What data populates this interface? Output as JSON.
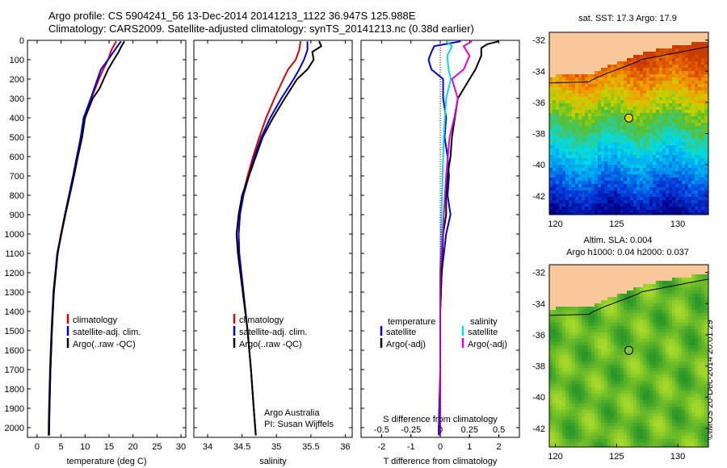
{
  "title": {
    "line1": "Argo profile: CS 5904241_56 13-Dec-2014 20141213_1122 36.947S 125.988E",
    "line2": "Climatology: CARS2009. Satellite-adjusted climatology: synTS_20141213.nc (0.38d earlier)"
  },
  "stamp": "©IMOS 20-Dec-2014 20:01:29",
  "colors": {
    "climatology": "#dd0000",
    "satellite": "#0000dd",
    "argo": "#000000",
    "sat_salinity": "#00dddd",
    "argo_salinity": "#dd00dd",
    "land": "#f8c89a"
  },
  "chart_data": [
    {
      "type": "line",
      "xlabel": "temperature (deg C)",
      "ylabel": "",
      "xlim": [
        -2,
        31
      ],
      "ylim": [
        2050,
        0
      ],
      "xticks": [
        "0",
        "5",
        "10",
        "15",
        "20",
        "25",
        "30"
      ],
      "yticks": [
        "0",
        "100",
        "200",
        "300",
        "400",
        "500",
        "600",
        "700",
        "800",
        "900",
        "1000",
        "1100",
        "1200",
        "1300",
        "1400",
        "1500",
        "1600",
        "1700",
        "1800",
        "1900",
        "2000"
      ],
      "legend": [
        "climatology",
        "satellite-adj. clim.",
        "Argo(..raw -QC)"
      ],
      "series": [
        {
          "name": "climatology",
          "color": "#dd0000",
          "depth": [
            5,
            50,
            100,
            150,
            200,
            300,
            400,
            500,
            700,
            900,
            1100,
            1300,
            1500,
            1700,
            1900,
            2040
          ],
          "values": [
            16.5,
            15.5,
            14.8,
            13.8,
            12.9,
            11.3,
            9.8,
            9.2,
            7.6,
            5.9,
            4.3,
            3.5,
            3.1,
            2.8,
            2.6,
            2.5
          ]
        },
        {
          "name": "satellite-adj. clim.",
          "color": "#0000dd",
          "depth": [
            5,
            50,
            100,
            150,
            200,
            300,
            400,
            500,
            700,
            900,
            1100,
            1300,
            1500,
            1700,
            1900,
            2040
          ],
          "values": [
            17.5,
            16.2,
            14.8,
            13.3,
            12.6,
            11.2,
            9.7,
            9.1,
            7.5,
            5.8,
            4.2,
            3.4,
            3.0,
            2.7,
            2.5,
            2.4
          ]
        },
        {
          "name": "Argo(..raw -QC)",
          "color": "#000000",
          "depth": [
            5,
            30,
            60,
            100,
            150,
            200,
            250,
            300,
            400,
            500,
            600,
            700,
            800,
            900,
            1000,
            1100,
            1300,
            1500,
            1700,
            1900,
            2040
          ],
          "values": [
            18.2,
            17.6,
            17.0,
            16.0,
            14.8,
            13.9,
            13.0,
            11.6,
            10.0,
            9.4,
            8.5,
            7.7,
            6.8,
            5.9,
            5.0,
            4.3,
            3.5,
            3.1,
            2.8,
            2.6,
            2.5
          ]
        }
      ]
    },
    {
      "type": "line",
      "xlabel": "salinity",
      "ylabel": "",
      "xlim": [
        33.8,
        36.1
      ],
      "ylim": [
        2050,
        0
      ],
      "xticks": [
        "34",
        "34.5",
        "35",
        "35.5",
        "36"
      ],
      "legend": [
        "climatology",
        "satellite-adj. clim.",
        "Argo(..raw -QC)"
      ],
      "annotation": [
        "Argo Australia",
        "PI: Susan Wijffels"
      ],
      "series": [
        {
          "name": "climatology",
          "color": "#dd0000",
          "depth": [
            5,
            50,
            100,
            150,
            200,
            300,
            400,
            500,
            600,
            700,
            800,
            900,
            1000,
            1100,
            1300,
            1500,
            1700,
            1900,
            2040
          ],
          "values": [
            35.35,
            35.33,
            35.28,
            35.17,
            35.1,
            34.97,
            34.85,
            34.75,
            34.66,
            34.58,
            34.51,
            34.47,
            34.45,
            34.46,
            34.52,
            34.58,
            34.63,
            34.67,
            34.7
          ]
        },
        {
          "name": "satellite-adj. clim.",
          "color": "#0000dd",
          "depth": [
            5,
            50,
            100,
            150,
            200,
            300,
            400,
            500,
            600,
            700,
            800,
            900,
            1000,
            1100,
            1300,
            1500,
            1700,
            1900,
            2040
          ],
          "values": [
            35.45,
            35.45,
            35.4,
            35.33,
            35.25,
            35.07,
            34.91,
            34.78,
            34.68,
            34.6,
            34.52,
            34.47,
            34.45,
            34.46,
            34.52,
            34.58,
            34.63,
            34.67,
            34.7
          ]
        },
        {
          "name": "Argo(..raw -QC)",
          "color": "#000000",
          "depth": [
            5,
            30,
            60,
            100,
            150,
            200,
            300,
            400,
            500,
            600,
            700,
            800,
            900,
            1000,
            1100,
            1300,
            1500,
            1700,
            1900,
            2040
          ],
          "values": [
            35.62,
            35.65,
            35.52,
            35.54,
            35.45,
            35.3,
            35.12,
            34.95,
            34.8,
            34.7,
            34.6,
            34.5,
            34.45,
            34.42,
            34.44,
            34.51,
            34.58,
            34.63,
            34.67,
            34.7
          ]
        }
      ]
    },
    {
      "type": "line",
      "xlabel": "T difference from climatology",
      "xlabel_top": "S difference from climatology",
      "xlim": [
        -2.7,
        2.7
      ],
      "ylim": [
        2050,
        0
      ],
      "xticks": [
        "-2",
        "-1",
        "0",
        "1",
        "2"
      ],
      "xticks_top": [
        "-0.5",
        "-0.25",
        "0",
        "0.25",
        "0.5"
      ],
      "legend_titles": [
        "temperature",
        "salinity"
      ],
      "legend": [
        "satellite",
        "Argo(-adj)",
        "satellite",
        "Argo(-adj)"
      ],
      "series": [
        {
          "name": "satellite",
          "quantity": "temperature",
          "color": "#0000dd",
          "depth": [
            5,
            30,
            60,
            100,
            150,
            200,
            300,
            400,
            500,
            600,
            700,
            800,
            900,
            1000,
            1200,
            1400,
            1700,
            2000,
            2040
          ],
          "values": [
            0.7,
            -0.2,
            -0.3,
            -0.4,
            -0.3,
            0.1,
            0.1,
            0.2,
            0.15,
            0.25,
            0.3,
            0.25,
            0.35,
            0.2,
            0.05,
            0.0,
            0.0,
            -0.05,
            -0.05
          ]
        },
        {
          "name": "Argo(-adj)",
          "quantity": "temperature",
          "color": "#000000",
          "depth": [
            5,
            20,
            40,
            80,
            150,
            200,
            300,
            400,
            500,
            600,
            700,
            800,
            900,
            1000,
            1200,
            1400,
            1700,
            2000,
            2040
          ],
          "values": [
            2.0,
            1.6,
            1.4,
            1.4,
            1.2,
            1.0,
            0.6,
            0.5,
            0.4,
            0.35,
            0.25,
            0.2,
            0.2,
            0.1,
            0.05,
            0.0,
            0.0,
            0.0,
            0.0
          ]
        },
        {
          "name": "satellite",
          "quantity": "salinity",
          "color": "#00dddd",
          "depth": [
            5,
            30,
            80,
            150,
            200,
            300,
            400,
            500,
            700,
            900,
            1200,
            1500,
            2040
          ],
          "values": [
            0.05,
            0.1,
            0.06,
            0.07,
            0.09,
            0.05,
            0.04,
            0.03,
            0.02,
            0.01,
            0.0,
            0.0,
            0.0
          ]
        },
        {
          "name": "Argo(-adj)",
          "quantity": "salinity",
          "color": "#dd00dd",
          "depth": [
            5,
            30,
            80,
            150,
            200,
            300,
            400,
            500,
            700,
            900,
            1200,
            1500,
            2040
          ],
          "values": [
            0.27,
            0.2,
            0.25,
            0.2,
            0.1,
            0.15,
            0.12,
            0.08,
            0.05,
            0.03,
            0.0,
            0.0,
            0.0
          ]
        }
      ]
    },
    {
      "type": "heatmap",
      "title": "sat. SST: 17.3 Argo: 17.9",
      "xticks": [
        "120",
        "125",
        "130"
      ],
      "yticks": [
        "-32",
        "-34",
        "-36",
        "-38",
        "-40",
        "-42"
      ],
      "xlim": [
        119.5,
        132.5
      ],
      "ylim": [
        -43.2,
        -31.5
      ],
      "marker": {
        "lon": 126.0,
        "lat": -37.0
      }
    },
    {
      "type": "heatmap",
      "title": "Altim. SLA: 0.004",
      "subtitle": "Argo h1000: 0.04 h2000: 0.037",
      "xticks": [
        "120",
        "125",
        "130"
      ],
      "yticks": [
        "-32",
        "-34",
        "-36",
        "-38",
        "-40",
        "-42"
      ],
      "xlim": [
        119.5,
        132.5
      ],
      "ylim": [
        -43.2,
        -31.5
      ],
      "marker": {
        "lon": 126.0,
        "lat": -37.0
      }
    }
  ]
}
